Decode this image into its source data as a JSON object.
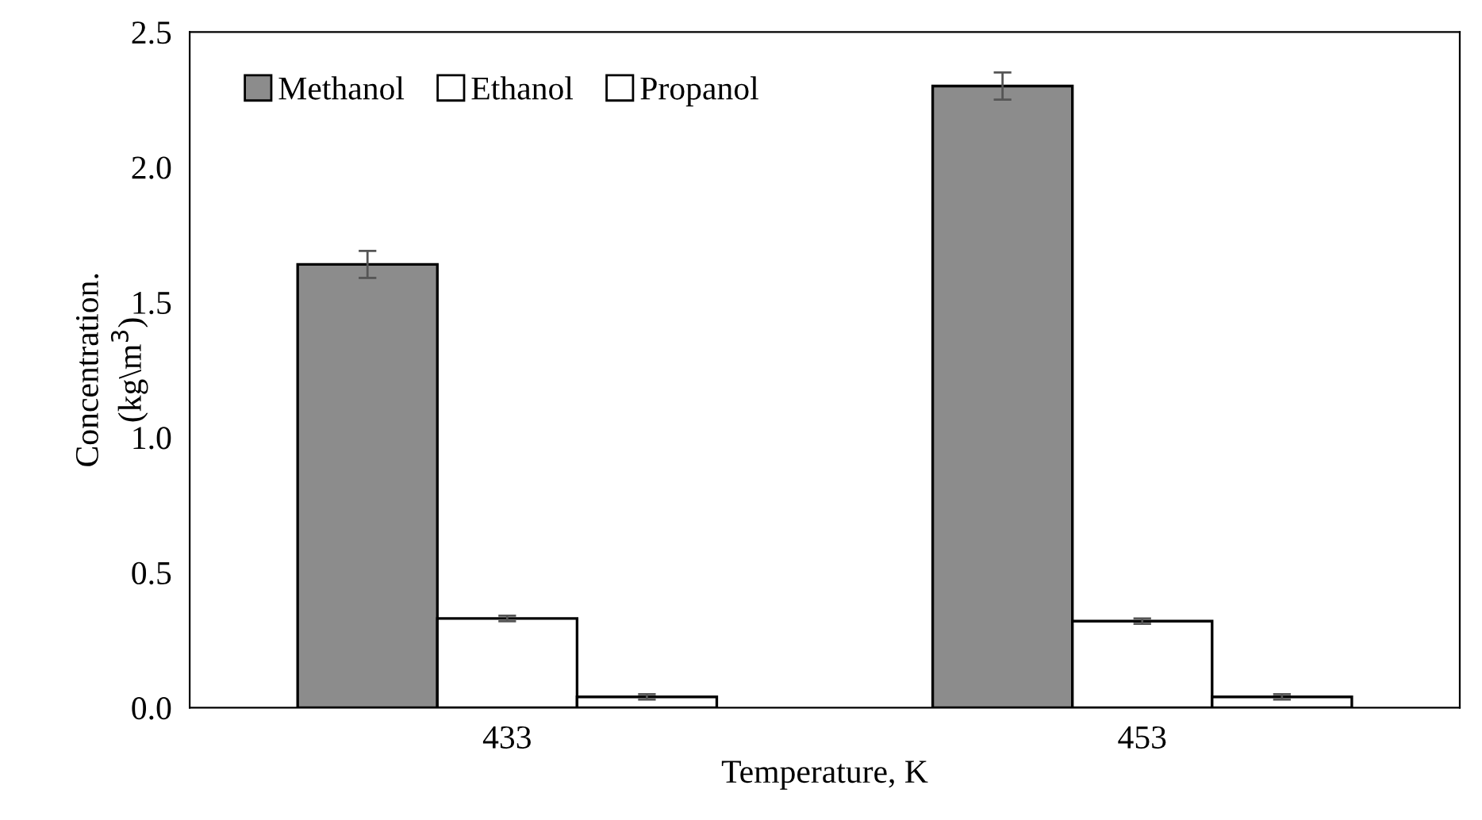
{
  "chart_data": {
    "type": "bar",
    "xlabel": "Temperature, K",
    "ylabel": "Concentration.\n(kg\\m$^{3}$)",
    "categories": [
      "433",
      "453"
    ],
    "series": [
      {
        "name": "Methanol",
        "color": "#8c8c8c",
        "values": [
          1.64,
          2.3
        ],
        "errors": [
          0.05,
          0.05
        ]
      },
      {
        "name": "Ethanol",
        "color": "#ffffff",
        "values": [
          0.33,
          0.32
        ],
        "errors": [
          0.01,
          0.01
        ]
      },
      {
        "name": "Propanol",
        "color": "#ffffff",
        "values": [
          0.04,
          0.04
        ],
        "errors": [
          0.01,
          0.01
        ]
      }
    ],
    "ylim": [
      0,
      2.5
    ],
    "yticks": [
      {
        "value": 0,
        "label": "0.0"
      },
      {
        "value": 0.5,
        "label": "0.5"
      },
      {
        "value": 1,
        "label": "1.0"
      },
      {
        "value": 1.5,
        "label": "1.5"
      },
      {
        "value": 2,
        "label": "2.0"
      },
      {
        "value": 2.5,
        "label": "2.5"
      }
    ],
    "grid": false,
    "legend": "top left"
  }
}
